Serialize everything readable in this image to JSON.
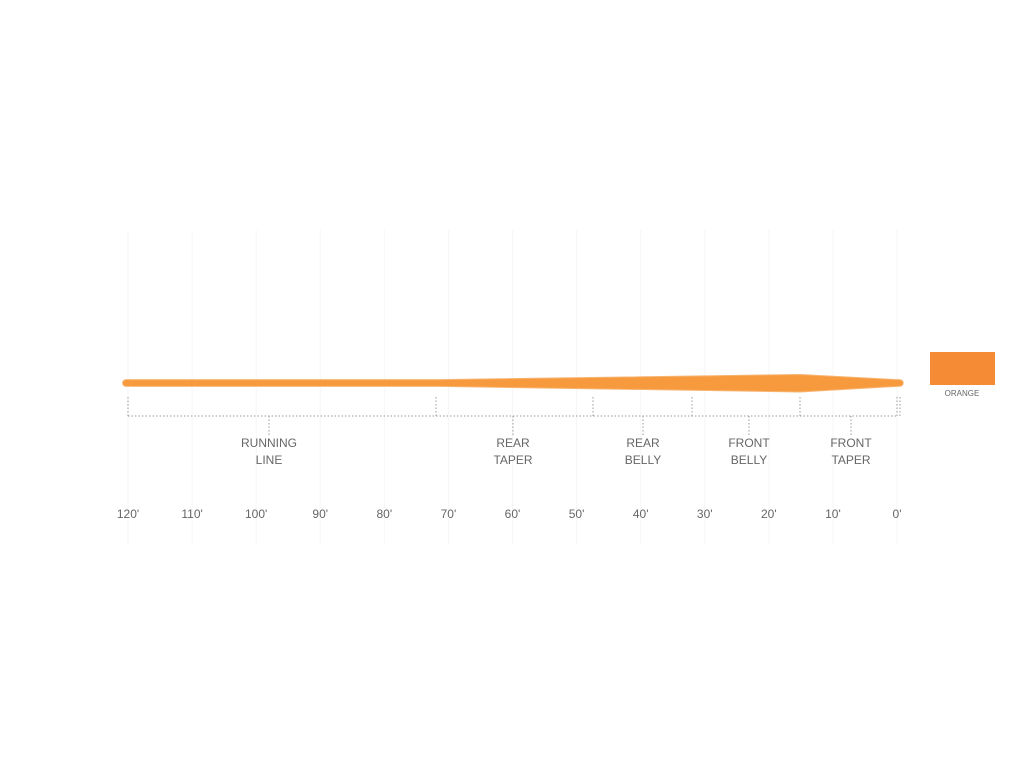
{
  "segments": [
    {
      "label": [
        "RUNNING",
        "LINE"
      ]
    },
    {
      "label": [
        "REAR",
        "TAPER"
      ]
    },
    {
      "label": [
        "REAR",
        "BELLY"
      ]
    },
    {
      "label": [
        "FRONT",
        "BELLY"
      ]
    },
    {
      "label": [
        "FRONT",
        "TAPER"
      ]
    }
  ],
  "axis": {
    "ticks": [
      "120'",
      "110'",
      "100'",
      "90'",
      "80'",
      "70'",
      "60'",
      "50'",
      "40'",
      "30'",
      "20'",
      "10'",
      "0'"
    ]
  },
  "swatch": {
    "label": "ORANGE"
  }
}
